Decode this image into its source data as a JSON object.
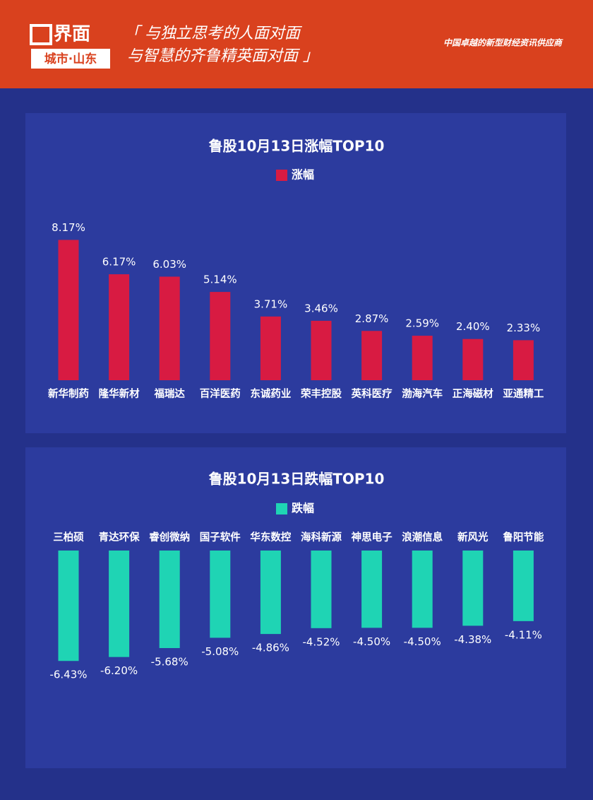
{
  "header": {
    "logo": "界面",
    "logo_sub": "城市·山东",
    "slogan": [
      "「 与独立思考的人面对面",
      "与智慧的齐鲁精英面对面 」"
    ],
    "tagline": "中国卓越的新型财经资讯供应商"
  },
  "chart_data": [
    {
      "type": "bar",
      "title": "鲁股10月13日涨幅TOP10",
      "categories": [
        "新华制药",
        "隆华新材",
        "福瑞达",
        "百洋医药",
        "东诚药业",
        "荣丰控股",
        "英科医疗",
        "渤海汽车",
        "正海磁材",
        "亚通精工"
      ],
      "series": [
        {
          "name": "涨幅",
          "color": "#d81b42",
          "values": [
            8.17,
            6.17,
            6.03,
            5.14,
            3.71,
            3.46,
            2.87,
            2.59,
            2.4,
            2.33
          ],
          "value_labels": [
            "8.17%",
            "6.17%",
            "6.03%",
            "5.14%",
            "3.71%",
            "3.46%",
            "2.87%",
            "2.59%",
            "2.40%",
            "2.33%"
          ]
        }
      ]
    },
    {
      "type": "bar",
      "title": "鲁股10月13日跌幅TOP10",
      "categories": [
        "三柏硕",
        "青达环保",
        "睿创微纳",
        "国子软件",
        "华东数控",
        "海科新源",
        "神思电子",
        "浪潮信息",
        "新风光",
        "鲁阳节能"
      ],
      "series": [
        {
          "name": "跌幅",
          "color": "#1fd4b4",
          "values": [
            -6.43,
            -6.2,
            -5.68,
            -5.08,
            -4.86,
            -4.52,
            -4.5,
            -4.5,
            -4.38,
            -4.11
          ],
          "value_labels": [
            "-6.43%",
            "-6.20%",
            "-5.68%",
            "-5.08%",
            "-4.86%",
            "-4.52%",
            "-4.50%",
            "-4.50%",
            "-4.38%",
            "-4.11%"
          ]
        }
      ]
    }
  ]
}
